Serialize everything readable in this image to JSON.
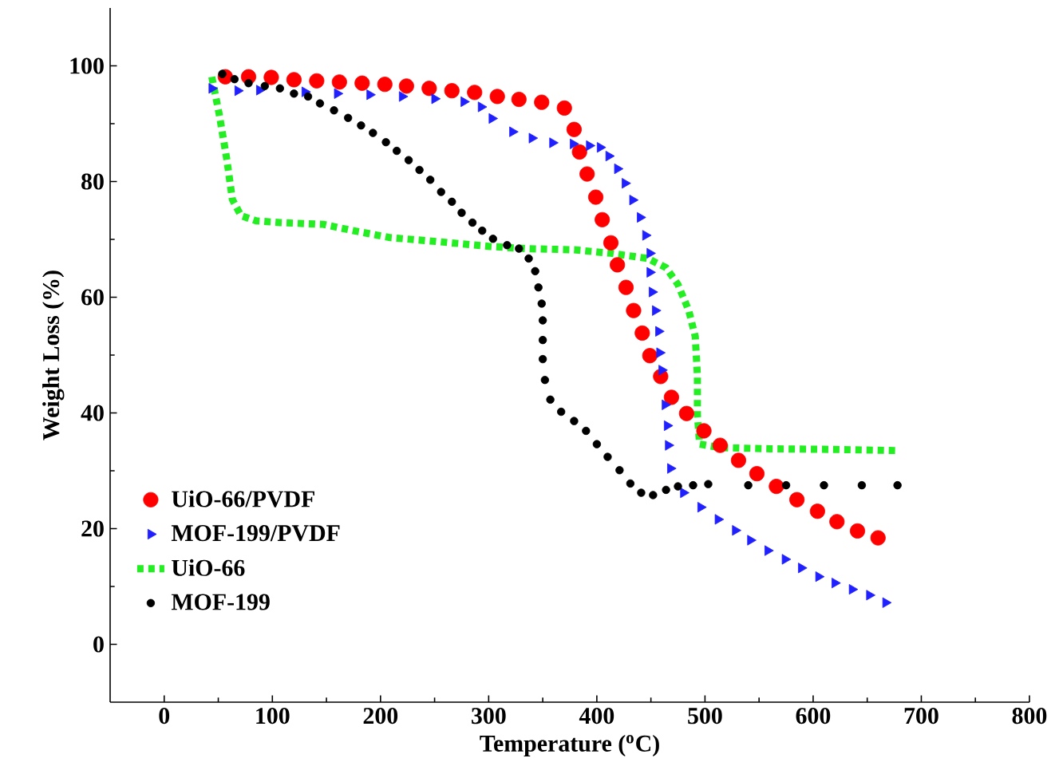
{
  "chart_data": {
    "type": "scatter",
    "xlabel": "Temperature ($^{o}$C)",
    "ylabel": "Weight Loss (%)",
    "xlim": [
      -50,
      800
    ],
    "ylim": [
      -10,
      110
    ],
    "xticks": [
      0,
      100,
      200,
      300,
      400,
      500,
      600,
      700,
      800
    ],
    "yticks": [
      0,
      20,
      40,
      60,
      80,
      100
    ],
    "legend": "bottom left",
    "grid": false,
    "series": [
      {
        "name": "UiO-66/PVDF",
        "color": "#ff0000",
        "marker": "circle",
        "x": [
          56.5,
          78,
          99,
          120,
          141,
          162,
          183,
          204,
          224,
          245,
          266,
          287,
          308,
          328,
          349,
          370,
          379,
          384,
          391,
          399,
          405,
          413,
          419,
          427,
          434,
          442,
          449,
          459,
          469,
          483,
          499,
          514,
          531,
          548,
          566,
          585,
          604,
          622,
          641,
          660
        ],
        "values": [
          98.1,
          98.1,
          98,
          97.6,
          97.4,
          97.2,
          97,
          96.8,
          96.5,
          96.1,
          95.7,
          95.4,
          94.7,
          94.2,
          93.7,
          92.7,
          89,
          85.1,
          81.3,
          77.3,
          73.4,
          69.4,
          65.6,
          61.7,
          57.7,
          53.8,
          49.9,
          46.3,
          42.7,
          39.9,
          36.9,
          34.4,
          31.8,
          29.5,
          27.3,
          25,
          23,
          21.2,
          19.6,
          18.4
        ]
      },
      {
        "name": "MOF-199/PVDF",
        "color": "#2020ff",
        "marker": "triangle",
        "x": [
          44,
          68,
          88,
          130,
          160,
          190,
          220,
          250,
          277,
          293,
          303,
          322,
          340,
          359,
          378,
          393,
          403,
          411,
          419,
          426,
          433,
          440,
          445,
          449,
          449,
          451,
          454,
          457,
          458,
          460,
          463,
          465,
          466,
          468,
          480,
          496,
          512,
          528,
          542,
          558,
          574,
          589,
          605,
          620,
          636,
          652,
          667
        ],
        "values": [
          96.1,
          95.7,
          95.8,
          95.5,
          95.2,
          95,
          94.7,
          94.3,
          93.8,
          92.9,
          90.9,
          88.6,
          87.5,
          86.7,
          86.5,
          86.2,
          85.9,
          84.4,
          82.2,
          79.7,
          76.8,
          73.8,
          70.7,
          67.6,
          64.3,
          60.9,
          57.7,
          54.1,
          50.4,
          47.4,
          41.4,
          37.8,
          34.4,
          30.4,
          26.2,
          23.7,
          21.6,
          19.7,
          18,
          16.2,
          14.7,
          13.2,
          11.7,
          10.6,
          9.5,
          8.5,
          7.2
        ]
      },
      {
        "name": "UiO-66",
        "color": "#22ee22",
        "type": "line",
        "line_style": "dashed",
        "x": [
          44,
          51,
          58,
          63,
          71,
          85,
          107,
          147,
          175,
          209,
          254,
          300,
          334,
          379,
          413,
          447,
          464,
          475,
          485,
          491,
          493,
          493,
          495,
          514,
          560,
          616,
          676
        ],
        "values": [
          98.1,
          91.5,
          83.7,
          76.9,
          74.1,
          73.2,
          72.9,
          72.6,
          71.5,
          70.3,
          69.6,
          68.8,
          68.4,
          68.2,
          67.6,
          66.7,
          65.1,
          62.2,
          57.7,
          53.2,
          46.4,
          39.7,
          34.6,
          34,
          33.8,
          33.7,
          33.5
        ]
      },
      {
        "name": "MOF-199",
        "color": "#000000",
        "marker": "circle",
        "x": [
          53.7,
          65,
          78,
          93,
          107,
          120,
          133,
          144,
          157,
          170,
          182,
          193,
          205,
          215,
          226,
          236,
          246,
          256,
          266,
          275,
          285,
          294,
          304,
          317,
          328,
          337,
          343,
          346,
          349,
          350,
          350,
          350,
          352,
          357,
          367,
          379,
          390,
          400,
          410,
          421,
          431,
          441,
          452,
          464,
          475,
          489,
          503,
          540,
          575,
          610,
          645,
          678
        ],
        "values": [
          98.6,
          97.7,
          97,
          96.5,
          96.1,
          95.2,
          94.7,
          93.5,
          92.3,
          91,
          89.7,
          88.4,
          86.8,
          85.3,
          83.7,
          82,
          80.3,
          78.2,
          76.5,
          74.6,
          72.9,
          71.5,
          70.1,
          69,
          68.4,
          66.7,
          64.5,
          61.7,
          58.9,
          56,
          52.6,
          49.3,
          45.7,
          42.3,
          40.2,
          38.6,
          36.9,
          34.6,
          32.4,
          30.1,
          27.8,
          26.2,
          25.8,
          26.7,
          27.3,
          27.5,
          27.7,
          27.5,
          27.5,
          27.5,
          27.5,
          27.5
        ]
      }
    ]
  }
}
